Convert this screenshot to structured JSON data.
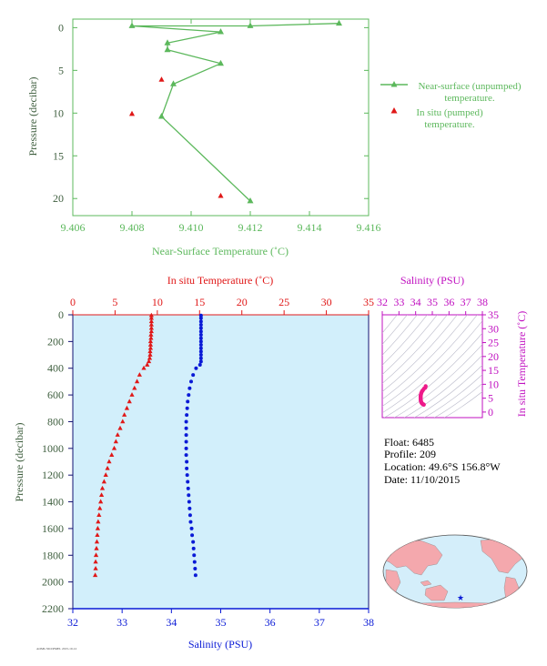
{
  "colors": {
    "green": "#5cb85c",
    "axis_green": "#3e8e3e",
    "red": "#e01818",
    "blue": "#0a1ad6",
    "magenta": "#c010c0",
    "pink": "#ee1a8a",
    "navy": "#101070",
    "profile_bg": "#d2effb",
    "map_land": "#f4a8ad",
    "map_ocean": "#d4eefa"
  },
  "info": {
    "float": "Float:  6485",
    "profile": "Profile:  209",
    "location": "Location:  49.6°S  156.8°W",
    "date": "Date:  11/10/2015"
  },
  "footer_code": "AOML/SIO/PMEL 2015-10-12",
  "chart_data": [
    {
      "type": "line",
      "xlabel": "Near-Surface Temperature (˚C)",
      "ylabel": "Pressure (decibar)",
      "xlim": [
        9.406,
        9.416
      ],
      "ylim": [
        22,
        -1
      ],
      "x_ticks": [
        "9.406",
        "9.408",
        "9.410",
        "9.412",
        "9.414",
        "9.416"
      ],
      "y_ticks": [
        "0",
        "5",
        "10",
        "15",
        "20"
      ],
      "legend_position": "right",
      "series": [
        {
          "name": "Near-surface (unpumped) temperature.",
          "style": "line-triangle",
          "color": "#5cb85c",
          "points": [
            {
              "x": 9.415,
              "y": -0.5
            },
            {
              "x": 9.412,
              "y": -0.2
            },
            {
              "x": 9.408,
              "y": -0.2
            },
            {
              "x": 9.411,
              "y": 0.5
            },
            {
              "x": 9.4092,
              "y": 1.8
            },
            {
              "x": 9.4092,
              "y": 2.6
            },
            {
              "x": 9.411,
              "y": 4.2
            },
            {
              "x": 9.4094,
              "y": 6.6
            },
            {
              "x": 9.409,
              "y": 10.4
            },
            {
              "x": 9.412,
              "y": 20.3
            }
          ]
        },
        {
          "name": "In situ (pumped) temperature.",
          "style": "triangle",
          "color": "#e01818",
          "points": [
            {
              "x": 9.409,
              "y": 6.1
            },
            {
              "x": 9.408,
              "y": 10.1
            },
            {
              "x": 9.411,
              "y": 19.7
            }
          ]
        }
      ]
    },
    {
      "type": "scatter",
      "top_xlabel": "In situ Temperature (˚C)",
      "bottom_xlabel": "Salinity (PSU)",
      "ylabel": "Pressure (decibar)",
      "temp_lim": [
        0,
        35
      ],
      "sal_lim": [
        32,
        38
      ],
      "ylim": [
        2200,
        0
      ],
      "temp_ticks": [
        "0",
        "5",
        "10",
        "15",
        "20",
        "25",
        "30",
        "35"
      ],
      "sal_ticks": [
        "32",
        "33",
        "34",
        "35",
        "36",
        "37",
        "38"
      ],
      "y_ticks": [
        "0",
        "200",
        "400",
        "600",
        "800",
        "1000",
        "1200",
        "1400",
        "1600",
        "1800",
        "2000",
        "2200"
      ],
      "temperature_profile": [
        {
          "p": 5,
          "t": 9.3
        },
        {
          "p": 25,
          "t": 9.3
        },
        {
          "p": 50,
          "t": 9.3
        },
        {
          "p": 75,
          "t": 9.3
        },
        {
          "p": 100,
          "t": 9.3
        },
        {
          "p": 125,
          "t": 9.3
        },
        {
          "p": 150,
          "t": 9.25
        },
        {
          "p": 175,
          "t": 9.25
        },
        {
          "p": 200,
          "t": 9.2
        },
        {
          "p": 225,
          "t": 9.2
        },
        {
          "p": 250,
          "t": 9.2
        },
        {
          "p": 275,
          "t": 9.15
        },
        {
          "p": 300,
          "t": 9.15
        },
        {
          "p": 325,
          "t": 9.1
        },
        {
          "p": 350,
          "t": 9.0
        },
        {
          "p": 375,
          "t": 8.8
        },
        {
          "p": 400,
          "t": 8.4
        },
        {
          "p": 450,
          "t": 7.9
        },
        {
          "p": 500,
          "t": 7.6
        },
        {
          "p": 550,
          "t": 7.3
        },
        {
          "p": 600,
          "t": 7.0
        },
        {
          "p": 650,
          "t": 6.7
        },
        {
          "p": 700,
          "t": 6.4
        },
        {
          "p": 750,
          "t": 6.1
        },
        {
          "p": 800,
          "t": 5.9
        },
        {
          "p": 850,
          "t": 5.6
        },
        {
          "p": 900,
          "t": 5.3
        },
        {
          "p": 950,
          "t": 5.1
        },
        {
          "p": 1000,
          "t": 4.9
        },
        {
          "p": 1050,
          "t": 4.6
        },
        {
          "p": 1100,
          "t": 4.3
        },
        {
          "p": 1150,
          "t": 4.1
        },
        {
          "p": 1200,
          "t": 3.9
        },
        {
          "p": 1250,
          "t": 3.7
        },
        {
          "p": 1300,
          "t": 3.5
        },
        {
          "p": 1350,
          "t": 3.4
        },
        {
          "p": 1400,
          "t": 3.3
        },
        {
          "p": 1450,
          "t": 3.2
        },
        {
          "p": 1500,
          "t": 3.1
        },
        {
          "p": 1550,
          "t": 3.0
        },
        {
          "p": 1600,
          "t": 2.95
        },
        {
          "p": 1650,
          "t": 2.9
        },
        {
          "p": 1700,
          "t": 2.85
        },
        {
          "p": 1750,
          "t": 2.8
        },
        {
          "p": 1800,
          "t": 2.75
        },
        {
          "p": 1850,
          "t": 2.7
        },
        {
          "p": 1900,
          "t": 2.7
        },
        {
          "p": 1950,
          "t": 2.65
        }
      ],
      "salinity_profile": [
        {
          "p": 5,
          "s": 34.6
        },
        {
          "p": 25,
          "s": 34.6
        },
        {
          "p": 50,
          "s": 34.6
        },
        {
          "p": 75,
          "s": 34.6
        },
        {
          "p": 100,
          "s": 34.6
        },
        {
          "p": 125,
          "s": 34.6
        },
        {
          "p": 150,
          "s": 34.6
        },
        {
          "p": 175,
          "s": 34.6
        },
        {
          "p": 200,
          "s": 34.6
        },
        {
          "p": 225,
          "s": 34.6
        },
        {
          "p": 250,
          "s": 34.6
        },
        {
          "p": 275,
          "s": 34.6
        },
        {
          "p": 300,
          "s": 34.6
        },
        {
          "p": 325,
          "s": 34.6
        },
        {
          "p": 350,
          "s": 34.6
        },
        {
          "p": 375,
          "s": 34.58
        },
        {
          "p": 400,
          "s": 34.5
        },
        {
          "p": 450,
          "s": 34.44
        },
        {
          "p": 500,
          "s": 34.4
        },
        {
          "p": 550,
          "s": 34.37
        },
        {
          "p": 600,
          "s": 34.35
        },
        {
          "p": 650,
          "s": 34.33
        },
        {
          "p": 700,
          "s": 34.32
        },
        {
          "p": 750,
          "s": 34.31
        },
        {
          "p": 800,
          "s": 34.3
        },
        {
          "p": 850,
          "s": 34.3
        },
        {
          "p": 900,
          "s": 34.3
        },
        {
          "p": 950,
          "s": 34.3
        },
        {
          "p": 1000,
          "s": 34.3
        },
        {
          "p": 1050,
          "s": 34.3
        },
        {
          "p": 1100,
          "s": 34.31
        },
        {
          "p": 1150,
          "s": 34.31
        },
        {
          "p": 1200,
          "s": 34.32
        },
        {
          "p": 1250,
          "s": 34.33
        },
        {
          "p": 1300,
          "s": 34.34
        },
        {
          "p": 1350,
          "s": 34.35
        },
        {
          "p": 1400,
          "s": 34.36
        },
        {
          "p": 1450,
          "s": 34.37
        },
        {
          "p": 1500,
          "s": 34.38
        },
        {
          "p": 1550,
          "s": 34.39
        },
        {
          "p": 1600,
          "s": 34.41
        },
        {
          "p": 1650,
          "s": 34.42
        },
        {
          "p": 1700,
          "s": 34.44
        },
        {
          "p": 1750,
          "s": 34.45
        },
        {
          "p": 1800,
          "s": 34.46
        },
        {
          "p": 1850,
          "s": 34.47
        },
        {
          "p": 1900,
          "s": 34.48
        },
        {
          "p": 1950,
          "s": 34.49
        }
      ]
    },
    {
      "type": "scatter",
      "xlabel": "Salinity (PSU)",
      "ylabel": "In situ Temperature (˚C)",
      "xlim": [
        32,
        38
      ],
      "ylim": [
        -2,
        35
      ],
      "x_ticks": [
        "32",
        "33",
        "34",
        "35",
        "36",
        "37",
        "38"
      ],
      "y_ticks": [
        "0",
        "5",
        "10",
        "15",
        "20",
        "25",
        "30",
        "35"
      ],
      "ts_points": [
        {
          "s": 34.6,
          "t": 9.3
        },
        {
          "s": 34.58,
          "t": 8.8
        },
        {
          "s": 34.5,
          "t": 8.4
        },
        {
          "s": 34.44,
          "t": 7.9
        },
        {
          "s": 34.4,
          "t": 7.6
        },
        {
          "s": 34.37,
          "t": 7.3
        },
        {
          "s": 34.35,
          "t": 7.0
        },
        {
          "s": 34.33,
          "t": 6.7
        },
        {
          "s": 34.32,
          "t": 6.4
        },
        {
          "s": 34.31,
          "t": 6.1
        },
        {
          "s": 34.3,
          "t": 5.9
        },
        {
          "s": 34.3,
          "t": 5.6
        },
        {
          "s": 34.3,
          "t": 5.3
        },
        {
          "s": 34.3,
          "t": 5.1
        },
        {
          "s": 34.3,
          "t": 4.9
        },
        {
          "s": 34.3,
          "t": 4.6
        },
        {
          "s": 34.31,
          "t": 4.3
        },
        {
          "s": 34.31,
          "t": 4.1
        },
        {
          "s": 34.32,
          "t": 3.9
        },
        {
          "s": 34.33,
          "t": 3.7
        },
        {
          "s": 34.34,
          "t": 3.5
        },
        {
          "s": 34.36,
          "t": 3.3
        },
        {
          "s": 34.38,
          "t": 3.1
        },
        {
          "s": 34.41,
          "t": 2.95
        },
        {
          "s": 34.44,
          "t": 2.85
        },
        {
          "s": 34.46,
          "t": 2.75
        },
        {
          "s": 34.48,
          "t": 2.7
        },
        {
          "s": 34.49,
          "t": 2.65
        }
      ]
    }
  ],
  "location_map": {
    "marker_lat": -49.6,
    "marker_lon": -156.8
  }
}
